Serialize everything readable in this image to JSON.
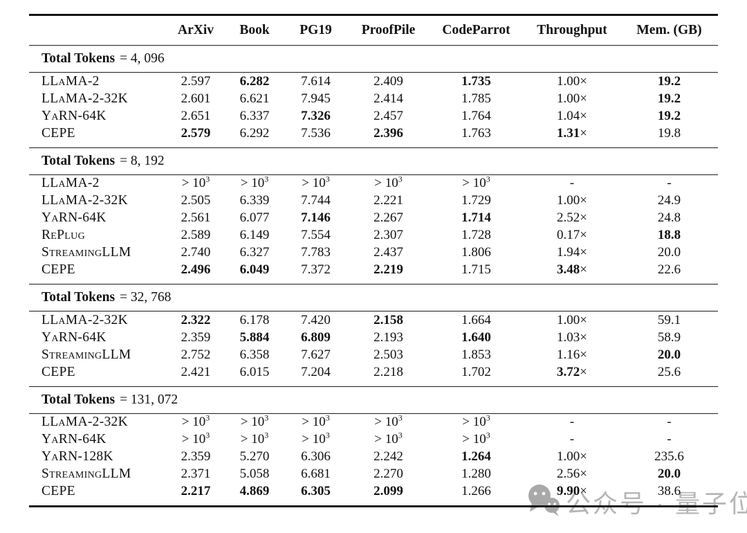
{
  "table": {
    "columns": [
      "",
      "ArXiv",
      "Book",
      "PG19",
      "ProofPile",
      "CodeParrot",
      "Throughput",
      "Mem. (GB)"
    ],
    "sections": [
      {
        "title_bold": "Total Tokens",
        "title_rest": "= 4, 096",
        "rows": [
          {
            "model": "LLaMA-2",
            "cells": [
              {
                "v": "2.597"
              },
              {
                "v": "6.282",
                "b": 1
              },
              {
                "v": "7.614"
              },
              {
                "v": "2.409"
              },
              {
                "v": "1.735",
                "b": 1
              },
              {
                "v": "1.00",
                "x": 1
              },
              {
                "v": "19.2",
                "b": 1
              }
            ]
          },
          {
            "model": "LLaMA-2-32K",
            "cells": [
              {
                "v": "2.601"
              },
              {
                "v": "6.621"
              },
              {
                "v": "7.945"
              },
              {
                "v": "2.414"
              },
              {
                "v": "1.785"
              },
              {
                "v": "1.00",
                "x": 1
              },
              {
                "v": "19.2",
                "b": 1
              }
            ]
          },
          {
            "model": "YaRN-64K",
            "cells": [
              {
                "v": "2.651"
              },
              {
                "v": "6.337"
              },
              {
                "v": "7.326",
                "b": 1
              },
              {
                "v": "2.457"
              },
              {
                "v": "1.764"
              },
              {
                "v": "1.04",
                "x": 1
              },
              {
                "v": "19.2",
                "b": 1
              }
            ]
          },
          {
            "model": "CEPE",
            "cells": [
              {
                "v": "2.579",
                "b": 1
              },
              {
                "v": "6.292"
              },
              {
                "v": "7.536"
              },
              {
                "v": "2.396",
                "b": 1
              },
              {
                "v": "1.763"
              },
              {
                "v": "1.31",
                "b": 1,
                "x": 1
              },
              {
                "v": "19.8"
              }
            ]
          }
        ]
      },
      {
        "title_bold": "Total Tokens",
        "title_rest": "= 8, 192",
        "rows": [
          {
            "model": "LLaMA-2",
            "cells": [
              {
                "v": "> 10",
                "sup": "3"
              },
              {
                "v": "> 10",
                "sup": "3"
              },
              {
                "v": "> 10",
                "sup": "3"
              },
              {
                "v": "> 10",
                "sup": "3"
              },
              {
                "v": "> 10",
                "sup": "3"
              },
              {
                "v": "-"
              },
              {
                "v": "-"
              }
            ]
          },
          {
            "model": "LLaMA-2-32K",
            "cells": [
              {
                "v": "2.505"
              },
              {
                "v": "6.339"
              },
              {
                "v": "7.744"
              },
              {
                "v": "2.221"
              },
              {
                "v": "1.729"
              },
              {
                "v": "1.00",
                "x": 1
              },
              {
                "v": "24.9"
              }
            ]
          },
          {
            "model": "YaRN-64K",
            "cells": [
              {
                "v": "2.561"
              },
              {
                "v": "6.077"
              },
              {
                "v": "7.146",
                "b": 1
              },
              {
                "v": "2.267"
              },
              {
                "v": "1.714",
                "b": 1
              },
              {
                "v": "2.52",
                "x": 1
              },
              {
                "v": "24.8"
              }
            ]
          },
          {
            "model": "RePlug",
            "cells": [
              {
                "v": "2.589"
              },
              {
                "v": "6.149"
              },
              {
                "v": "7.554"
              },
              {
                "v": "2.307"
              },
              {
                "v": "1.728"
              },
              {
                "v": "0.17",
                "x": 1
              },
              {
                "v": "18.8",
                "b": 1
              }
            ]
          },
          {
            "model": "StreamingLLM",
            "cells": [
              {
                "v": "2.740"
              },
              {
                "v": "6.327"
              },
              {
                "v": "7.783"
              },
              {
                "v": "2.437"
              },
              {
                "v": "1.806"
              },
              {
                "v": "1.94",
                "x": 1
              },
              {
                "v": "20.0"
              }
            ]
          },
          {
            "model": "CEPE",
            "cells": [
              {
                "v": "2.496",
                "b": 1
              },
              {
                "v": "6.049",
                "b": 1
              },
              {
                "v": "7.372"
              },
              {
                "v": "2.219",
                "b": 1
              },
              {
                "v": "1.715"
              },
              {
                "v": "3.48",
                "b": 1,
                "x": 1
              },
              {
                "v": "22.6"
              }
            ]
          }
        ]
      },
      {
        "title_bold": "Total Tokens",
        "title_rest": "= 32, 768",
        "rows": [
          {
            "model": "LLaMA-2-32K",
            "cells": [
              {
                "v": "2.322",
                "b": 1
              },
              {
                "v": "6.178"
              },
              {
                "v": "7.420"
              },
              {
                "v": "2.158",
                "b": 1
              },
              {
                "v": "1.664"
              },
              {
                "v": "1.00",
                "x": 1
              },
              {
                "v": "59.1"
              }
            ]
          },
          {
            "model": "YaRN-64K",
            "cells": [
              {
                "v": "2.359"
              },
              {
                "v": "5.884",
                "b": 1
              },
              {
                "v": "6.809",
                "b": 1
              },
              {
                "v": "2.193"
              },
              {
                "v": "1.640",
                "b": 1
              },
              {
                "v": "1.03",
                "x": 1
              },
              {
                "v": "58.9"
              }
            ]
          },
          {
            "model": "StreamingLLM",
            "cells": [
              {
                "v": "2.752"
              },
              {
                "v": "6.358"
              },
              {
                "v": "7.627"
              },
              {
                "v": "2.503"
              },
              {
                "v": "1.853"
              },
              {
                "v": "1.16",
                "x": 1
              },
              {
                "v": "20.0",
                "b": 1
              }
            ]
          },
          {
            "model": "CEPE",
            "cells": [
              {
                "v": "2.421"
              },
              {
                "v": "6.015"
              },
              {
                "v": "7.204"
              },
              {
                "v": "2.218"
              },
              {
                "v": "1.702"
              },
              {
                "v": "3.72",
                "b": 1,
                "x": 1
              },
              {
                "v": "25.6"
              }
            ]
          }
        ]
      },
      {
        "title_bold": "Total Tokens",
        "title_rest": "= 131, 072",
        "rows": [
          {
            "model": "LLaMA-2-32K",
            "cells": [
              {
                "v": "> 10",
                "sup": "3"
              },
              {
                "v": "> 10",
                "sup": "3"
              },
              {
                "v": "> 10",
                "sup": "3"
              },
              {
                "v": "> 10",
                "sup": "3"
              },
              {
                "v": "> 10",
                "sup": "3"
              },
              {
                "v": "-"
              },
              {
                "v": "-"
              }
            ]
          },
          {
            "model": "YaRN-64K",
            "cells": [
              {
                "v": "> 10",
                "sup": "3"
              },
              {
                "v": "> 10",
                "sup": "3"
              },
              {
                "v": "> 10",
                "sup": "3"
              },
              {
                "v": "> 10",
                "sup": "3"
              },
              {
                "v": "> 10",
                "sup": "3"
              },
              {
                "v": "-"
              },
              {
                "v": "-"
              }
            ]
          },
          {
            "model": "YaRN-128K",
            "cells": [
              {
                "v": "2.359"
              },
              {
                "v": "5.270"
              },
              {
                "v": "6.306"
              },
              {
                "v": "2.242"
              },
              {
                "v": "1.264",
                "b": 1
              },
              {
                "v": "1.00",
                "x": 1
              },
              {
                "v": "235.6"
              }
            ]
          },
          {
            "model": "StreamingLLM",
            "cells": [
              {
                "v": "2.371"
              },
              {
                "v": "5.058"
              },
              {
                "v": "6.681"
              },
              {
                "v": "2.270"
              },
              {
                "v": "1.280"
              },
              {
                "v": "2.56",
                "x": 1
              },
              {
                "v": "20.0",
                "b": 1
              }
            ]
          },
          {
            "model": "CEPE",
            "cells": [
              {
                "v": "2.217",
                "b": 1
              },
              {
                "v": "4.869",
                "b": 1
              },
              {
                "v": "6.305",
                "b": 1
              },
              {
                "v": "2.099",
                "b": 1
              },
              {
                "v": "1.266"
              },
              {
                "v": "9.90",
                "b": 1,
                "x": 1
              },
              {
                "v": "38.6"
              }
            ]
          }
        ]
      }
    ]
  },
  "watermark": {
    "text": "公众号 · 量子位",
    "icon": "wechat-chat-bubbles-icon",
    "color": "#b5b5b5"
  }
}
